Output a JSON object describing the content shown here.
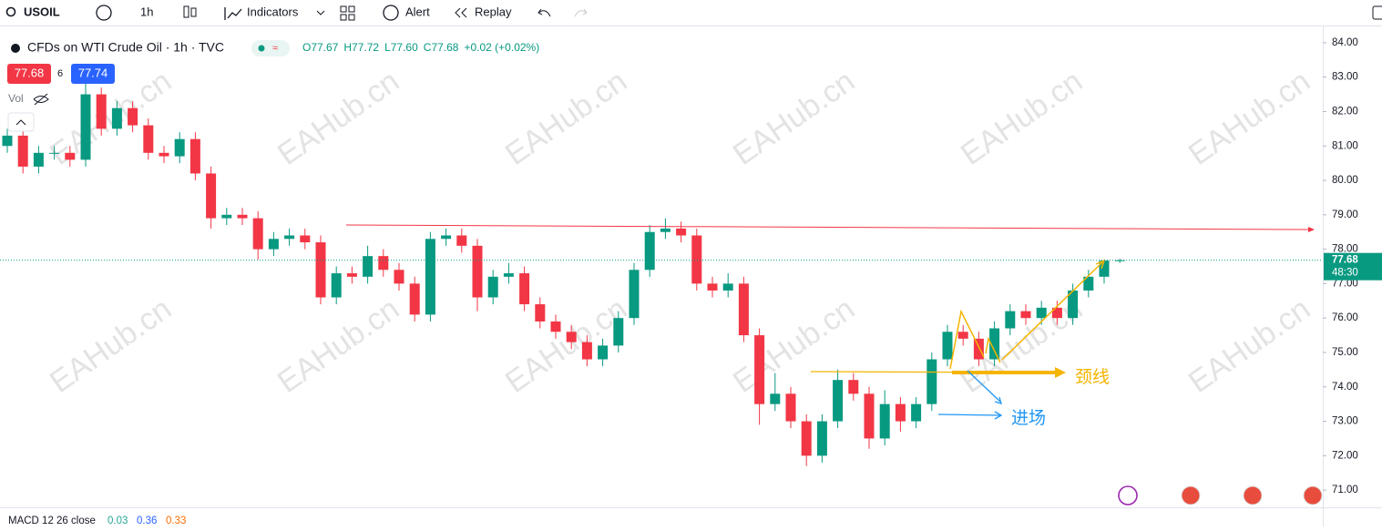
{
  "ui": {
    "symbol": "USOIL",
    "interval": "1h",
    "indicators": "Indicators",
    "alert": "Alert",
    "replay": "Replay",
    "legend_title": "CFDs on WTI Crude Oil · 1h · TVC",
    "ohlc": [
      "O77.67",
      "H77.72",
      "L77.60",
      "C77.68",
      "+0.02 (+0.02%)"
    ],
    "bid": "77.68",
    "spread": "6",
    "ask": "77.74",
    "vol": "Vol",
    "macd": "MACD 12 26 close",
    "macd_values": [
      "0.03",
      "0.36",
      "0.33"
    ],
    "countdown": "48:30",
    "watermark": "EAHub.cn",
    "neckline": "颈线",
    "entry": "进场"
  },
  "chart_data": {
    "type": "candlestick",
    "up_color": "#089981",
    "down_color": "#f23645",
    "ylim": [
      70.5,
      84.5
    ],
    "yticks": [
      {
        "value": 84,
        "label": "84.00"
      },
      {
        "value": 83,
        "label": "83.00"
      },
      {
        "value": 82,
        "label": "82.00"
      },
      {
        "value": 81,
        "label": "81.00"
      },
      {
        "value": 80,
        "label": "80.00"
      },
      {
        "value": 79,
        "label": "79.00"
      },
      {
        "value": 78,
        "label": "78.00"
      },
      {
        "value": 77,
        "label": "77.00"
      },
      {
        "value": 76,
        "label": "76.00"
      },
      {
        "value": 75,
        "label": "75.00"
      },
      {
        "value": 74,
        "label": "74.00"
      },
      {
        "value": 73,
        "label": "73.00"
      },
      {
        "value": 72,
        "label": "72.00"
      },
      {
        "value": 71,
        "label": "71.00"
      }
    ],
    "candles": [
      [
        81.0,
        81.5,
        80.8,
        81.3
      ],
      [
        81.3,
        81.5,
        80.2,
        80.4
      ],
      [
        80.4,
        81.0,
        80.2,
        80.8
      ],
      [
        80.8,
        81.0,
        80.6,
        80.8
      ],
      [
        80.8,
        81.0,
        80.4,
        80.6
      ],
      [
        80.6,
        83.0,
        80.4,
        82.5
      ],
      [
        82.5,
        82.7,
        81.3,
        81.5
      ],
      [
        81.5,
        82.3,
        81.3,
        82.1
      ],
      [
        82.1,
        82.3,
        81.4,
        81.6
      ],
      [
        81.6,
        81.8,
        80.6,
        80.8
      ],
      [
        80.8,
        81.0,
        80.5,
        80.7
      ],
      [
        80.7,
        81.4,
        80.5,
        81.2
      ],
      [
        81.2,
        81.4,
        80.0,
        80.2
      ],
      [
        80.2,
        80.4,
        78.6,
        78.9
      ],
      [
        78.9,
        79.2,
        78.7,
        79.0
      ],
      [
        79.0,
        79.2,
        78.7,
        78.9
      ],
      [
        78.9,
        79.1,
        77.7,
        78.0
      ],
      [
        78.0,
        78.5,
        77.8,
        78.3
      ],
      [
        78.3,
        78.6,
        78.1,
        78.4
      ],
      [
        78.4,
        78.6,
        78.0,
        78.2
      ],
      [
        78.2,
        78.4,
        76.4,
        76.6
      ],
      [
        76.6,
        77.5,
        76.4,
        77.3
      ],
      [
        77.3,
        77.5,
        77.0,
        77.2
      ],
      [
        77.2,
        78.1,
        77.0,
        77.8
      ],
      [
        77.8,
        78.0,
        77.2,
        77.4
      ],
      [
        77.4,
        77.6,
        76.8,
        77.0
      ],
      [
        77.0,
        77.2,
        75.9,
        76.1
      ],
      [
        76.1,
        78.5,
        75.9,
        78.3
      ],
      [
        78.3,
        78.6,
        78.1,
        78.4
      ],
      [
        78.4,
        78.6,
        77.9,
        78.1
      ],
      [
        78.1,
        78.3,
        76.2,
        76.6
      ],
      [
        76.6,
        77.4,
        76.4,
        77.2
      ],
      [
        77.2,
        77.6,
        77.0,
        77.3
      ],
      [
        77.3,
        77.5,
        76.2,
        76.4
      ],
      [
        76.4,
        76.6,
        75.7,
        75.9
      ],
      [
        75.9,
        76.1,
        75.4,
        75.6
      ],
      [
        75.6,
        75.8,
        75.1,
        75.3
      ],
      [
        75.3,
        75.5,
        74.6,
        74.8
      ],
      [
        74.8,
        75.4,
        74.6,
        75.2
      ],
      [
        75.2,
        76.2,
        75.0,
        76.0
      ],
      [
        76.0,
        77.6,
        75.8,
        77.4
      ],
      [
        77.4,
        78.7,
        77.2,
        78.5
      ],
      [
        78.5,
        78.9,
        78.3,
        78.6
      ],
      [
        78.6,
        78.8,
        78.2,
        78.4
      ],
      [
        78.4,
        78.6,
        76.8,
        77.0
      ],
      [
        77.0,
        77.2,
        76.6,
        76.8
      ],
      [
        76.8,
        77.3,
        76.6,
        77.0
      ],
      [
        77.0,
        77.2,
        75.3,
        75.5
      ],
      [
        75.5,
        75.7,
        72.9,
        73.5
      ],
      [
        73.5,
        74.4,
        73.3,
        73.8
      ],
      [
        73.8,
        74.0,
        72.8,
        73.0
      ],
      [
        73.0,
        73.2,
        71.7,
        72.0
      ],
      [
        72.0,
        73.2,
        71.8,
        73.0
      ],
      [
        73.0,
        74.5,
        72.8,
        74.2
      ],
      [
        74.2,
        74.4,
        73.6,
        73.8
      ],
      [
        73.8,
        74.0,
        72.2,
        72.5
      ],
      [
        72.5,
        73.9,
        72.3,
        73.5
      ],
      [
        73.5,
        73.7,
        72.7,
        73.0
      ],
      [
        73.0,
        73.7,
        72.8,
        73.5
      ],
      [
        73.5,
        75.0,
        73.3,
        74.8
      ],
      [
        74.8,
        75.8,
        74.6,
        75.6
      ],
      [
        75.6,
        75.8,
        75.2,
        75.4
      ],
      [
        75.4,
        75.6,
        74.6,
        74.8
      ],
      [
        74.8,
        75.9,
        74.6,
        75.7
      ],
      [
        75.7,
        76.4,
        75.5,
        76.2
      ],
      [
        76.2,
        76.4,
        75.8,
        76.0
      ],
      [
        76.0,
        76.5,
        75.8,
        76.3
      ],
      [
        76.3,
        76.5,
        75.8,
        76.0
      ],
      [
        76.0,
        77.0,
        75.8,
        76.8
      ],
      [
        76.8,
        77.4,
        76.6,
        77.2
      ],
      [
        77.2,
        77.7,
        77.0,
        77.67
      ],
      [
        77.67,
        77.72,
        77.6,
        77.68
      ]
    ]
  }
}
